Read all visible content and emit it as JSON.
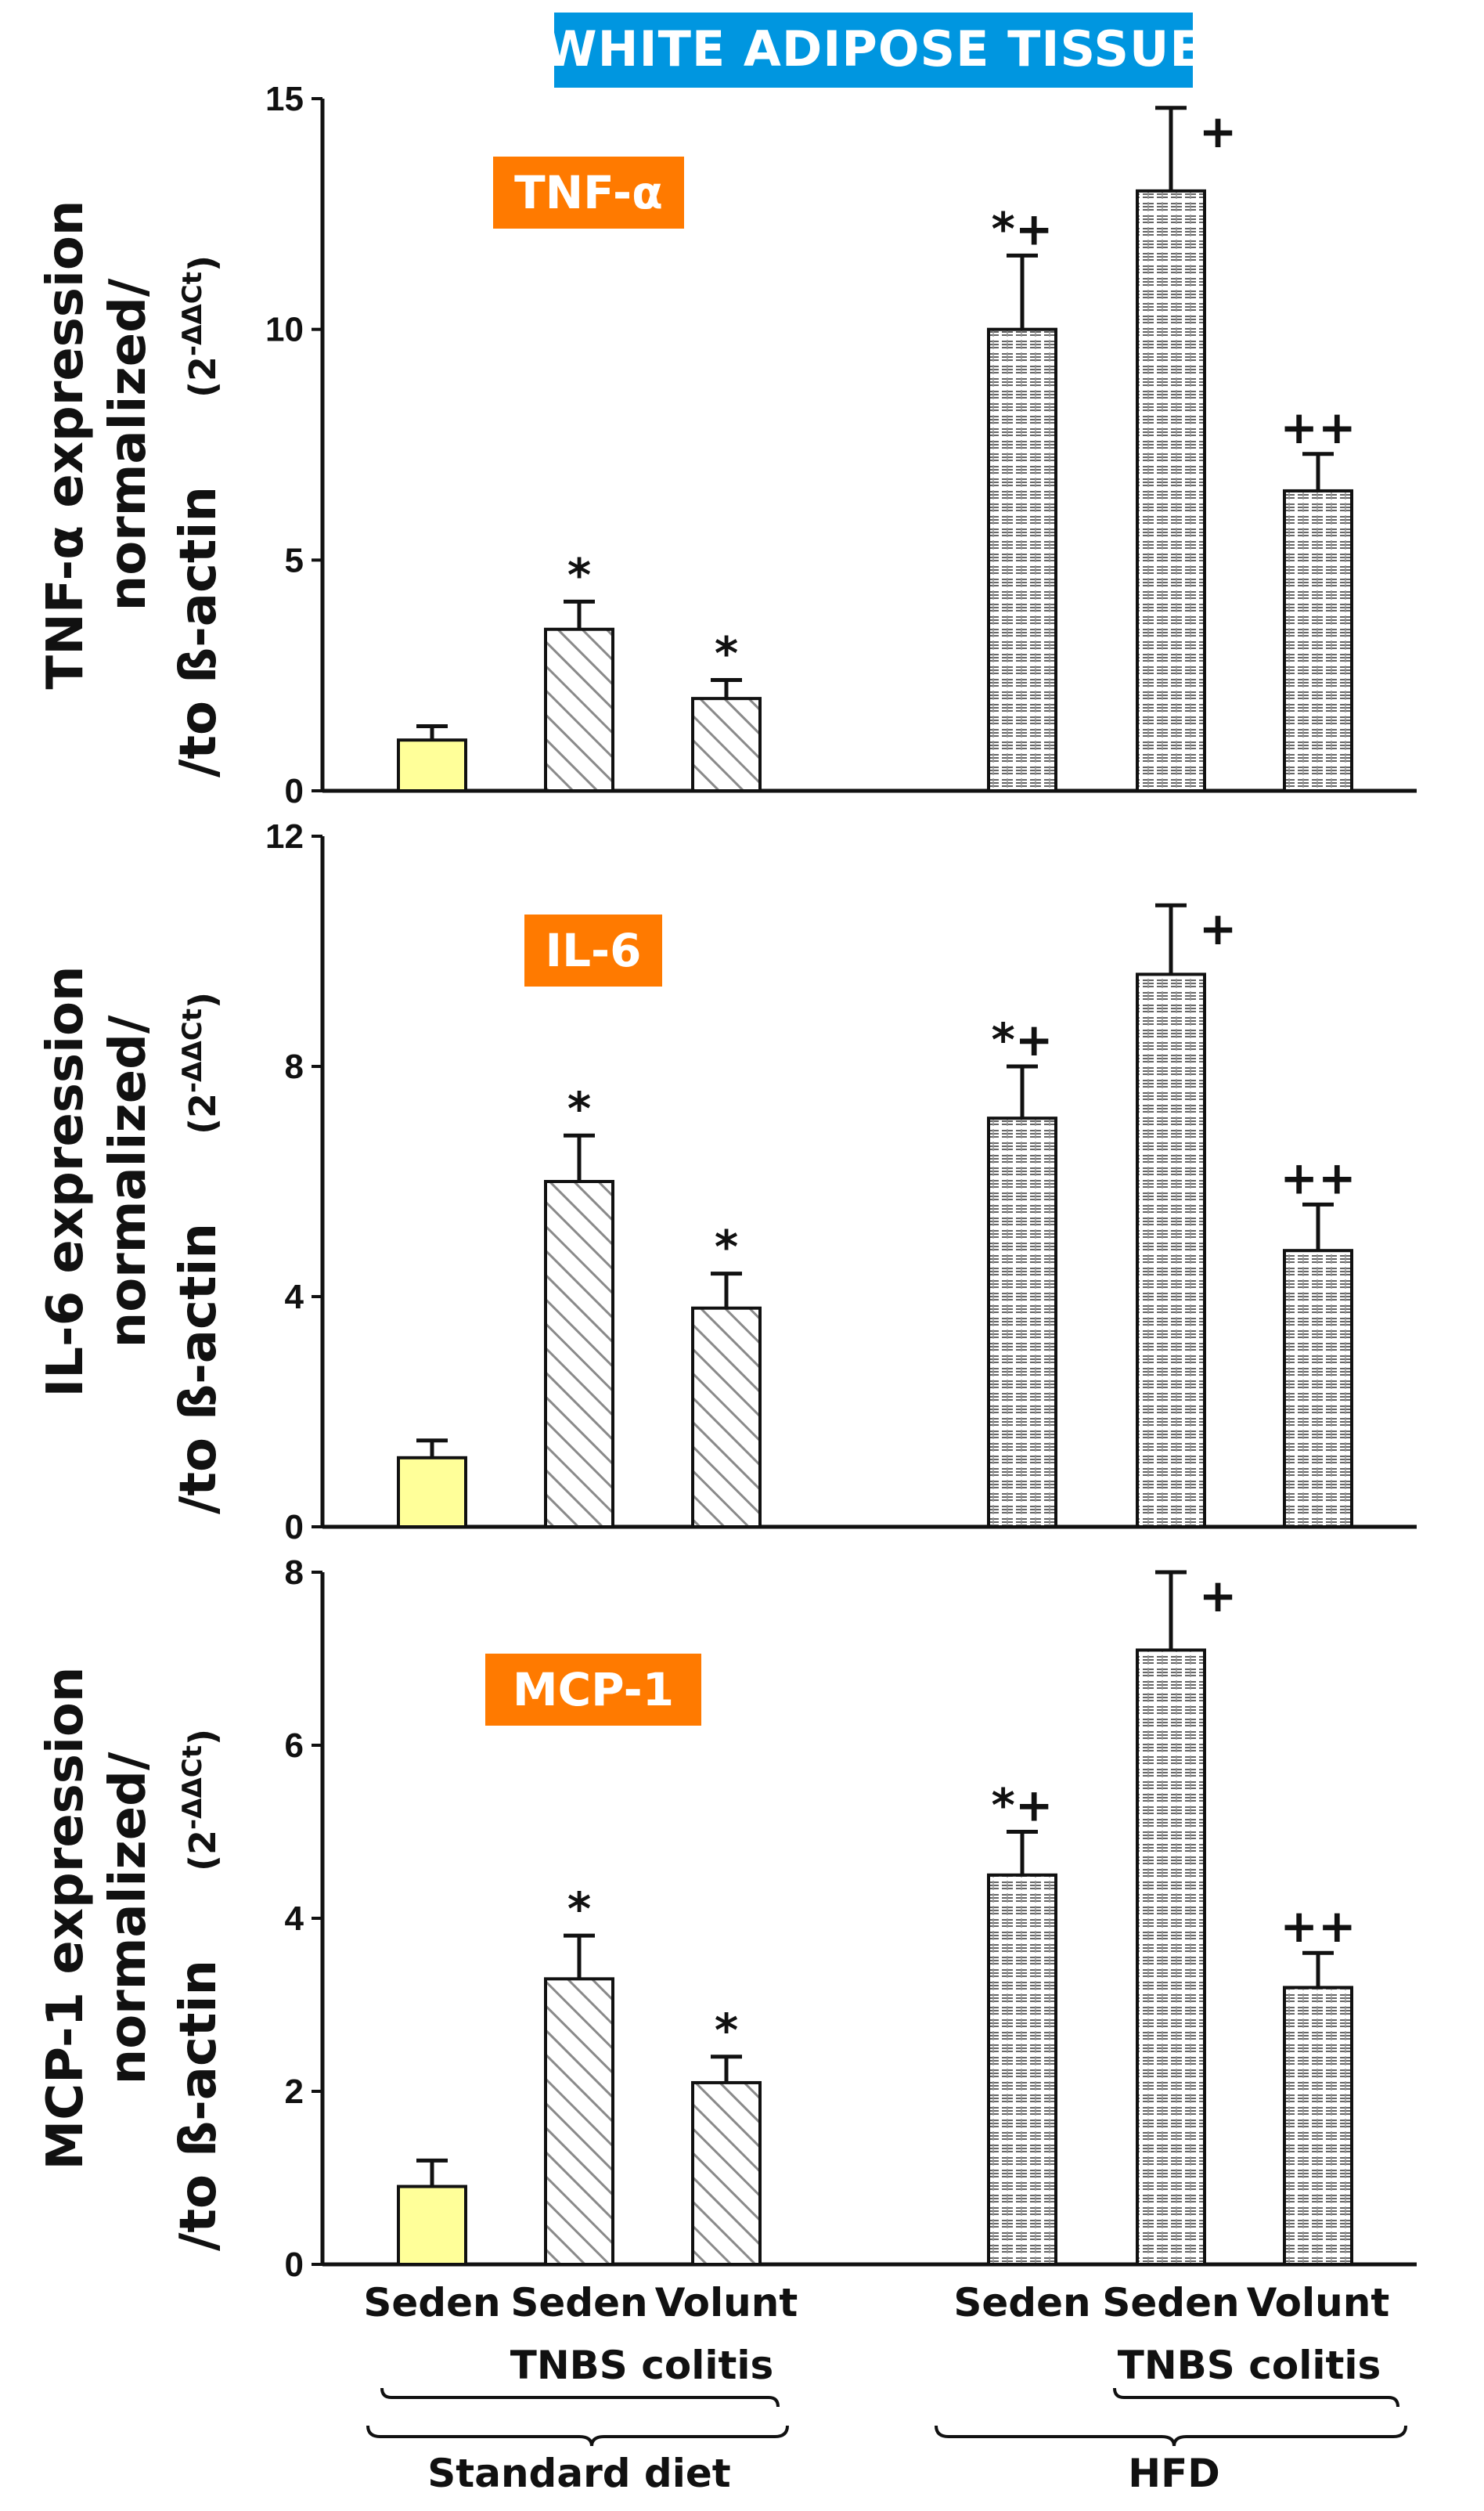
{
  "header": {
    "title": "WHITE ADIPOSE TISSUE"
  },
  "colors": {
    "header_bg": "#0096e0",
    "label_bg": "#ff7a00",
    "control_fill": "#ffff99",
    "pattern_stroke": "#888888"
  },
  "groups": {
    "standard_label": "Standard diet",
    "hfd_label": "HFD",
    "tnbs_label_1": "TNBS colitis",
    "tnbs_label_2": "TNBS colitis"
  },
  "chart_data": [
    {
      "type": "bar",
      "title": "TNF-α",
      "ylabel_lines": [
        "TNF-α expression",
        "normalized/",
        "/to ß-actin"
      ],
      "ylabel_unit_base": "(2",
      "ylabel_unit_exp": "-ΔΔCt",
      "ylabel_unit_close": ")",
      "ylim": [
        0,
        15
      ],
      "yticks": [
        0,
        5,
        10,
        15
      ],
      "categories": [
        "Seden",
        "Seden",
        "Volunt",
        "Seden",
        "Seden",
        "Volunt"
      ],
      "values": [
        1.1,
        3.5,
        2.0,
        10.0,
        13.0,
        6.5
      ],
      "errors": [
        0.3,
        0.6,
        0.4,
        1.6,
        1.8,
        0.8
      ],
      "significance": [
        "",
        "*",
        "*",
        "*+",
        "+",
        "++"
      ]
    },
    {
      "type": "bar",
      "title": "IL-6",
      "ylabel_lines": [
        "IL-6 expression",
        "normalized/",
        "/to ß-actin"
      ],
      "ylabel_unit_base": "(2",
      "ylabel_unit_exp": "-ΔΔCt",
      "ylabel_unit_close": ")",
      "ylim": [
        0,
        12
      ],
      "yticks": [
        0,
        4,
        8,
        12
      ],
      "categories": [
        "Seden",
        "Seden",
        "Volunt",
        "Seden",
        "Seden",
        "Volunt"
      ],
      "values": [
        1.2,
        6.0,
        3.8,
        7.1,
        9.6,
        4.8
      ],
      "errors": [
        0.3,
        0.8,
        0.6,
        0.9,
        1.2,
        0.8
      ],
      "significance": [
        "",
        "*",
        "*",
        "*+",
        "+",
        "++"
      ]
    },
    {
      "type": "bar",
      "title": "MCP-1",
      "ylabel_lines": [
        "MCP-1 expression",
        "normalized/",
        "/to ß-actin"
      ],
      "ylabel_unit_base": "(2",
      "ylabel_unit_exp": "-ΔΔCt",
      "ylabel_unit_close": ")",
      "ylim": [
        0,
        8
      ],
      "yticks": [
        0,
        2,
        4,
        6,
        8
      ],
      "categories": [
        "Seden",
        "Seden",
        "Volunt",
        "Seden",
        "Seden",
        "Volunt"
      ],
      "values": [
        0.9,
        3.3,
        2.1,
        4.5,
        7.1,
        3.2
      ],
      "errors": [
        0.3,
        0.5,
        0.3,
        0.5,
        0.9,
        0.4
      ],
      "significance": [
        "",
        "*",
        "*",
        "*+",
        "+",
        "++"
      ]
    }
  ]
}
